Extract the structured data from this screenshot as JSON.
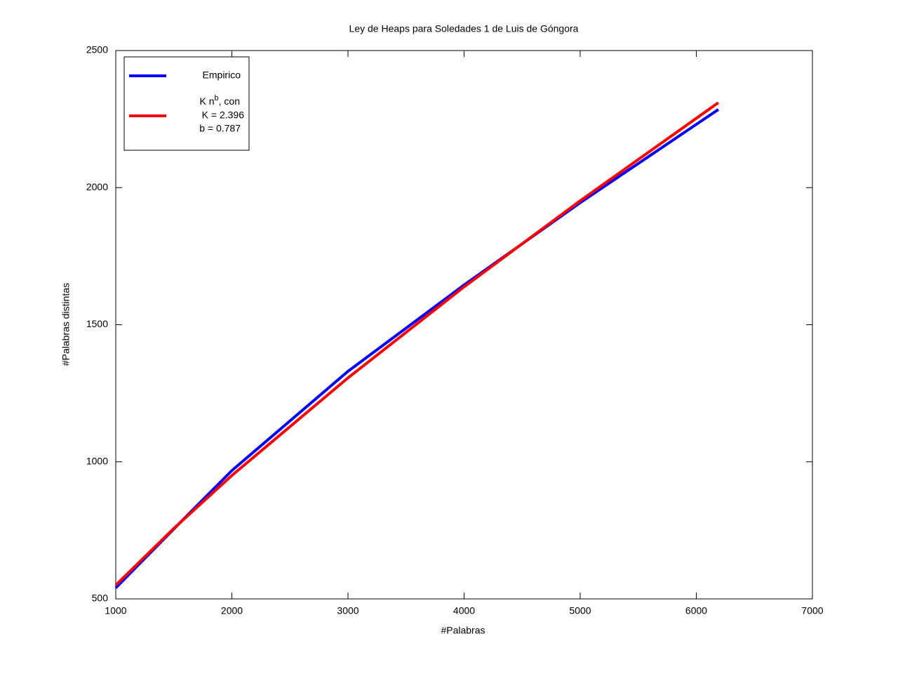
{
  "chart_data": {
    "type": "line",
    "title": "Ley de Heaps para Soledades 1 de Luis de Góngora",
    "x_label": "#Palabras",
    "y_label": "#Palabras distintas",
    "x": [
      1000,
      1500,
      2000,
      3000,
      4000,
      5000,
      6190
    ],
    "series": [
      {
        "name": "Empirico",
        "color": "#0000ff",
        "values": [
          540,
          755,
          968,
          1330,
          1645,
          1945,
          2285
        ]
      },
      {
        "name": "K n",
        "name_superscript": "b",
        "name_suffix": ", con",
        "legend_lines": [
          "K = 2.396",
          "b = 0.787"
        ],
        "color": "#ff0000",
        "values": [
          550,
          757,
          950,
          1306,
          1638,
          1952,
          2310
        ]
      }
    ],
    "xlim": [
      1000,
      7000
    ],
    "xticks": [
      1000,
      2000,
      3000,
      4000,
      5000,
      6000,
      7000
    ],
    "ylim": [
      500,
      2500
    ],
    "yticks": [
      500,
      1000,
      1500,
      2000,
      2500
    ],
    "grid": false,
    "legend": "upper-left"
  }
}
